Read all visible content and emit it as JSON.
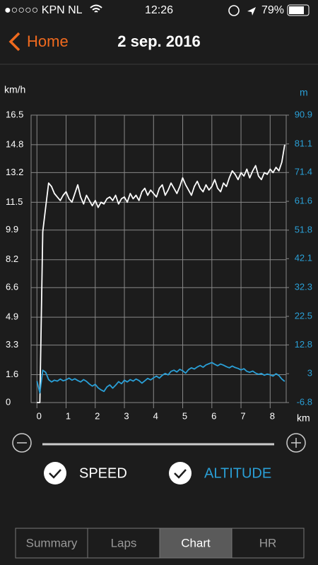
{
  "status_bar": {
    "carrier": "●○○○○ KPN NL",
    "time": "12:26",
    "battery": "79%"
  },
  "nav": {
    "back": "Home",
    "title": "2 sep. 2016"
  },
  "chart_data": {
    "type": "line",
    "y_label": "km/h",
    "y2_label": "m",
    "x_label": "km",
    "x": [
      0,
      0.1,
      0.2,
      0.3,
      0.4,
      0.5,
      0.6,
      0.7,
      0.8,
      0.9,
      1,
      1.1,
      1.2,
      1.3,
      1.4,
      1.5,
      1.6,
      1.7,
      1.8,
      1.9,
      2,
      2.1,
      2.2,
      2.3,
      2.4,
      2.5,
      2.6,
      2.7,
      2.8,
      2.9,
      3,
      3.1,
      3.2,
      3.3,
      3.4,
      3.5,
      3.6,
      3.7,
      3.8,
      3.9,
      4,
      4.1,
      4.2,
      4.3,
      4.4,
      4.5,
      4.6,
      4.7,
      4.8,
      4.9,
      5,
      5.1,
      5.2,
      5.3,
      5.4,
      5.5,
      5.6,
      5.7,
      5.8,
      5.9,
      6,
      6.1,
      6.2,
      6.3,
      6.4,
      6.5,
      6.6,
      6.7,
      6.8,
      6.9,
      7,
      7.1,
      7.2,
      7.3,
      7.4,
      7.5,
      7.6,
      7.7,
      7.8,
      7.9,
      8,
      8.1,
      8.2,
      8.3,
      8.4,
      8.5
    ],
    "series": [
      {
        "name": "SPEED",
        "color": "#ffffff",
        "values": [
          0,
          0,
          9.8,
          11.2,
          12.6,
          12.4,
          12.0,
          11.8,
          11.6,
          11.9,
          12.1,
          11.7,
          11.5,
          12.0,
          12.5,
          11.8,
          11.4,
          11.9,
          11.6,
          11.3,
          11.6,
          11.2,
          11.5,
          11.4,
          11.7,
          11.8,
          11.6,
          11.9,
          11.4,
          11.7,
          11.8,
          11.5,
          12.0,
          11.7,
          11.9,
          11.6,
          12.1,
          12.3,
          11.9,
          12.2,
          12.0,
          11.8,
          12.3,
          12.5,
          11.9,
          12.2,
          12.6,
          12.3,
          12.0,
          12.4,
          12.9,
          12.5,
          12.2,
          11.9,
          12.4,
          12.7,
          12.3,
          12.1,
          12.5,
          12.2,
          12.4,
          12.8,
          12.3,
          12.1,
          12.6,
          12.4,
          12.9,
          13.3,
          13.1,
          12.8,
          13.2,
          13.0,
          13.4,
          12.9,
          13.3,
          13.6,
          13.0,
          12.8,
          13.2,
          13.1,
          13.4,
          13.2,
          13.5,
          13.3,
          13.8,
          14.8
        ]
      },
      {
        "name": "ALTITUDE",
        "color": "#2a9fd6",
        "axis": "y2",
        "values": [
          0.5,
          -3.5,
          4.2,
          3.5,
          1.0,
          0.2,
          0.8,
          0.5,
          1.2,
          0.6,
          0.9,
          1.5,
          0.8,
          1.3,
          0.7,
          0.2,
          1.0,
          0.4,
          -0.5,
          -1.2,
          -0.6,
          -1.8,
          -2.5,
          -3.0,
          -1.5,
          -0.8,
          -1.9,
          -0.9,
          0.3,
          -0.4,
          0.8,
          0.2,
          1.0,
          0.5,
          1.2,
          0.7,
          -0.2,
          0.6,
          1.4,
          0.9,
          1.6,
          2.2,
          1.5,
          2.5,
          3.1,
          2.6,
          3.8,
          4.2,
          3.6,
          4.5,
          4.0,
          3.2,
          4.4,
          5.0,
          4.6,
          5.3,
          5.8,
          5.2,
          6.0,
          6.4,
          6.8,
          6.2,
          5.7,
          6.3,
          5.9,
          5.4,
          5.0,
          5.6,
          5.1,
          4.8,
          4.3,
          4.7,
          3.8,
          3.5,
          3.9,
          3.2,
          2.8,
          3.1,
          2.5,
          2.9,
          2.6,
          2.2,
          3.0,
          2.4,
          1.2,
          0.4
        ]
      }
    ],
    "xlim": [
      -0.2,
      8.55
    ],
    "xticks": [
      0,
      1,
      2,
      3,
      4,
      5,
      6,
      7,
      8
    ],
    "ylim": [
      0,
      16.5
    ],
    "yticks": [
      0,
      1.6,
      3.3,
      4.9,
      6.6,
      8.2,
      9.9,
      11.5,
      13.2,
      14.8,
      16.5
    ],
    "y2lim": [
      -6.8,
      90.9
    ],
    "y2ticks": [
      -6.8,
      3,
      12.8,
      22.5,
      32.3,
      42.1,
      51.8,
      61.6,
      71.4,
      81.1,
      90.9
    ],
    "grid": true
  },
  "tabs": [
    "Summary",
    "Laps",
    "Chart",
    "HR"
  ],
  "selected_tab": 2
}
